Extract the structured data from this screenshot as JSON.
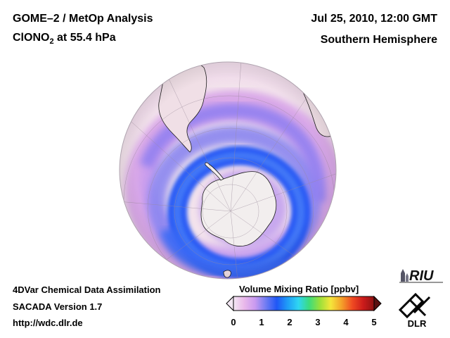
{
  "header": {
    "title_line1": "GOME–2 / MetOp Analysis",
    "title_line2_prefix": "ClONO",
    "title_line2_sub": "2",
    "title_line2_suffix": " at 55.4 hPa",
    "date": "Jul 25, 2010, 12:00 GMT",
    "region": "Southern Hemisphere"
  },
  "footer": {
    "line1": "4DVar Chemical Data Assimilation",
    "line2": "SACADA Version 1.7",
    "line3": "http://wdc.dlr.de"
  },
  "colorbar": {
    "title": "Volume Mixing Ratio [ppbv]",
    "ticks": [
      "0",
      "1",
      "2",
      "3",
      "4",
      "5"
    ],
    "range": [
      0,
      5
    ],
    "colors": [
      "#f4e8f4",
      "#e9b8ea",
      "#c99af0",
      "#6f7cf2",
      "#1f57f6",
      "#1f9df7",
      "#2fd6f2",
      "#3cdc7d",
      "#9be03a",
      "#f5e63a",
      "#f4a12a",
      "#ef4a22",
      "#cc1b1b",
      "#8e1313"
    ]
  },
  "logos": {
    "riu": "RIU",
    "dlr": "DLR"
  },
  "map": {
    "projection": "orthographic",
    "center": "South Pole",
    "field": "ClONO2",
    "pressure_level_hpa": 55.4,
    "land_color": "#f2eeee",
    "ocean_color": "#f3e3ec",
    "max_region_color": "#2a5cf5"
  }
}
